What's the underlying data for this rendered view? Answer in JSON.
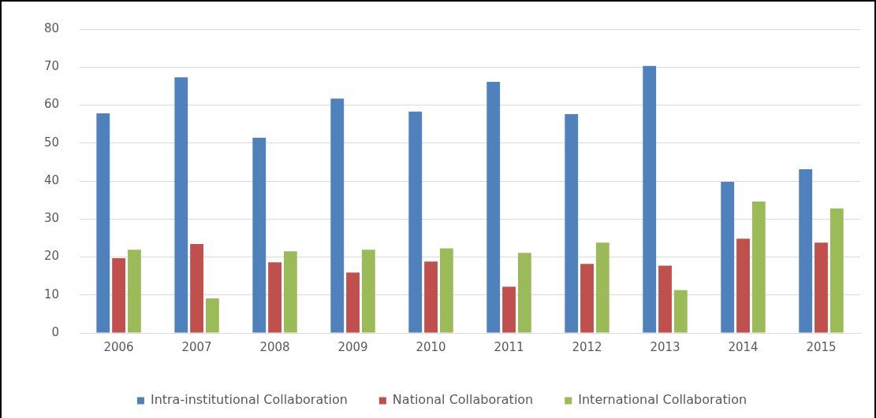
{
  "chart_data": {
    "type": "bar",
    "categories": [
      "2006",
      "2007",
      "2008",
      "2009",
      "2010",
      "2011",
      "2012",
      "2013",
      "2014",
      "2015"
    ],
    "series": [
      {
        "name": "Intra-institutional Collaboration",
        "color": "#4f81bd",
        "values": [
          57.8,
          67.3,
          51.4,
          61.7,
          58.3,
          66.1,
          57.6,
          70.3,
          39.8,
          43.1
        ]
      },
      {
        "name": "National Collaboration",
        "color": "#c0504d",
        "values": [
          19.7,
          23.4,
          18.6,
          15.9,
          18.8,
          12.2,
          18.2,
          17.7,
          24.8,
          23.8
        ]
      },
      {
        "name": "International Collaboration",
        "color": "#9bbb59",
        "values": [
          21.9,
          9.1,
          21.5,
          21.9,
          22.3,
          21.1,
          23.8,
          11.3,
          34.6,
          32.8
        ]
      }
    ],
    "ylim": [
      0,
      80
    ],
    "yticks": [
      0,
      10,
      20,
      30,
      40,
      50,
      60,
      70,
      80
    ],
    "grid": "y",
    "legend": "bottom"
  }
}
